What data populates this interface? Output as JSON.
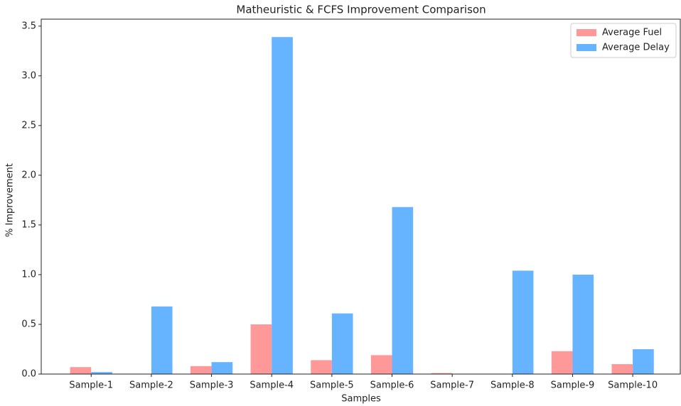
{
  "chart_data": {
    "type": "bar",
    "title": "Matheuristic & FCFS Improvement Comparison",
    "x_label": "Samples",
    "y_label": "% Improvement",
    "categories": [
      "Sample-1",
      "Sample-2",
      "Sample-3",
      "Sample-4",
      "Sample-5",
      "Sample-6",
      "Sample-7",
      "Sample-8",
      "Sample-9",
      "Sample-10"
    ],
    "series": [
      {
        "name": "Average Fuel",
        "color": "#ff9999",
        "values": [
          0.07,
          0,
          0.08,
          0.5,
          0.14,
          0.19,
          0.01,
          0,
          0.23,
          0.1
        ]
      },
      {
        "name": "Average Delay",
        "color": "#66b3ff",
        "values": [
          0.02,
          0.68,
          0.12,
          3.39,
          0.61,
          1.68,
          0,
          1.04,
          1.0,
          0.25
        ]
      }
    ],
    "ylim": [
      0,
      3.57
    ],
    "yticks": [
      {
        "value": 0,
        "label": "0.0"
      },
      0.5,
      {
        "value": 1,
        "label": "1.0"
      },
      1.5,
      {
        "value": 2,
        "label": "2.0"
      },
      2.5,
      {
        "value": 3,
        "label": "3.0"
      },
      3.5
    ],
    "legend": "upper right"
  }
}
